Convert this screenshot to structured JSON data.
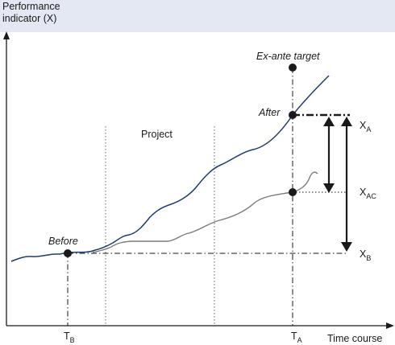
{
  "y_axis_label": [
    "Performance",
    "indicator (X)"
  ],
  "x_axis_label": "Time course",
  "project_label": "Project",
  "target_label": "Ex-ante target",
  "after_label": "After",
  "before_label": "Before",
  "time_labels": {
    "before": {
      "base": "T",
      "sub": "B"
    },
    "after": {
      "base": "T",
      "sub": "A"
    }
  },
  "level_labels": {
    "after": {
      "base": "X",
      "sub": "A"
    },
    "counterfactual": {
      "base": "X",
      "sub": "AC"
    },
    "before": {
      "base": "X",
      "sub": "B"
    }
  },
  "colors": {
    "header_band": "#e3e8f2",
    "plot_background": "#ffffff",
    "actual_line": "#1f3b73",
    "counterfactual_line": "#7a7a7a",
    "axes": "#1a1a1a"
  }
}
